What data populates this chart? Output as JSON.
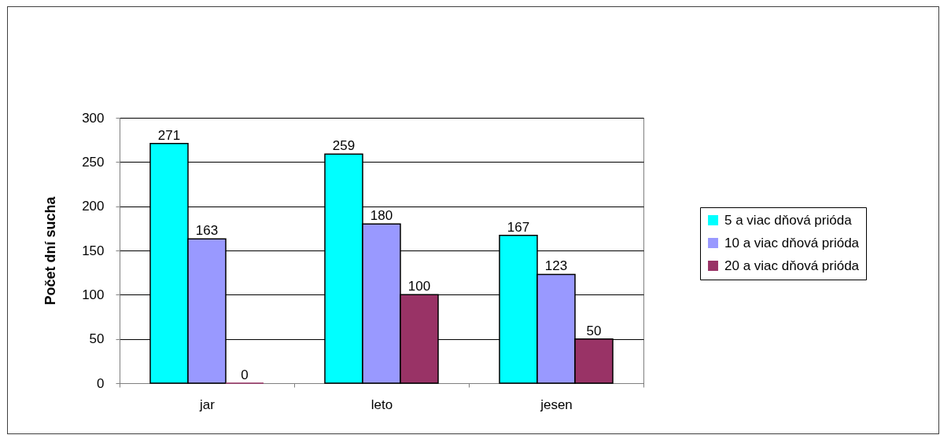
{
  "chart_data": {
    "type": "bar",
    "ylabel": "Počet dní sucha",
    "categories": [
      "jar",
      "leto",
      "jesen"
    ],
    "series": [
      {
        "name": "5 a viac dňová prióda",
        "color": "#00ffff",
        "values": [
          271,
          259,
          167
        ]
      },
      {
        "name": "10 a viac dňová prióda",
        "color": "#9999ff",
        "values": [
          163,
          180,
          123
        ]
      },
      {
        "name": "20 a viac dňová prióda",
        "color": "#993366",
        "values": [
          0,
          100,
          50
        ]
      }
    ],
    "ylim": [
      0,
      300
    ],
    "yticks": [
      0,
      50,
      100,
      150,
      200,
      250,
      300
    ],
    "grid": "y",
    "data_labels": true,
    "legend": "right"
  }
}
